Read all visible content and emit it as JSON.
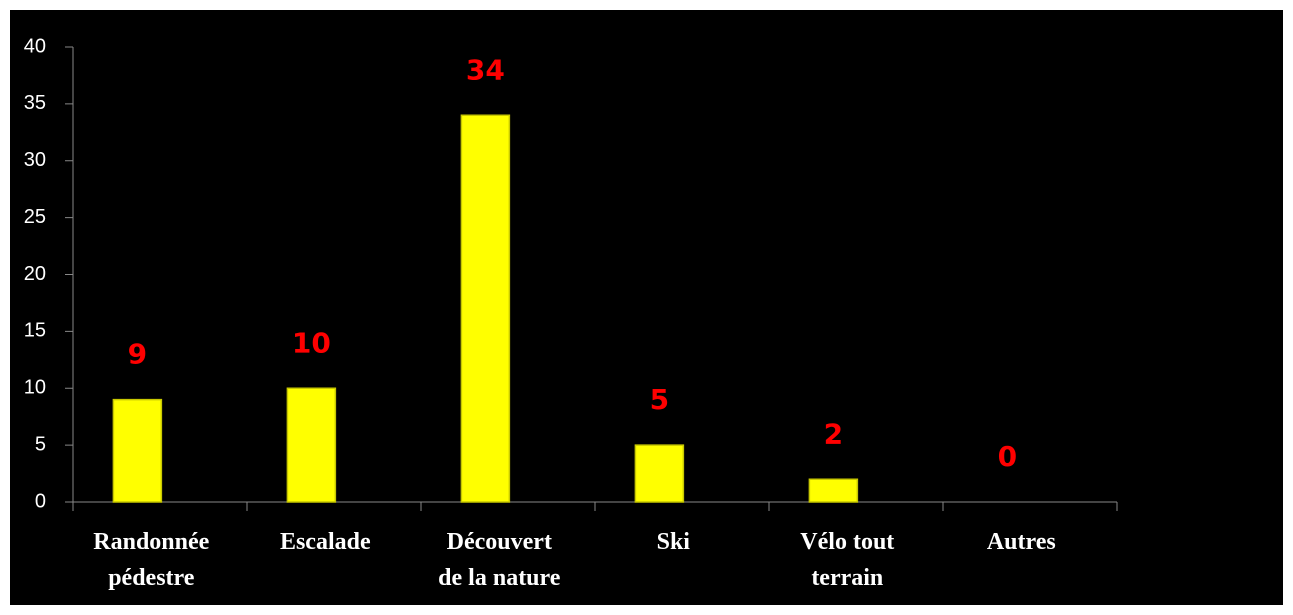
{
  "chart_data": {
    "type": "bar",
    "categories": [
      "Randonnée pédestre",
      "Escalade",
      "Découvert de la nature",
      "Ski",
      "Vélo tout terrain",
      "Autres"
    ],
    "values": [
      9,
      10,
      34,
      5,
      2,
      0
    ],
    "color": "#ffff00",
    "label_color": "#ff0000",
    "ylim": [
      0,
      40
    ],
    "yticks": [
      0,
      5,
      10,
      15,
      20,
      25,
      30,
      35,
      40
    ]
  }
}
